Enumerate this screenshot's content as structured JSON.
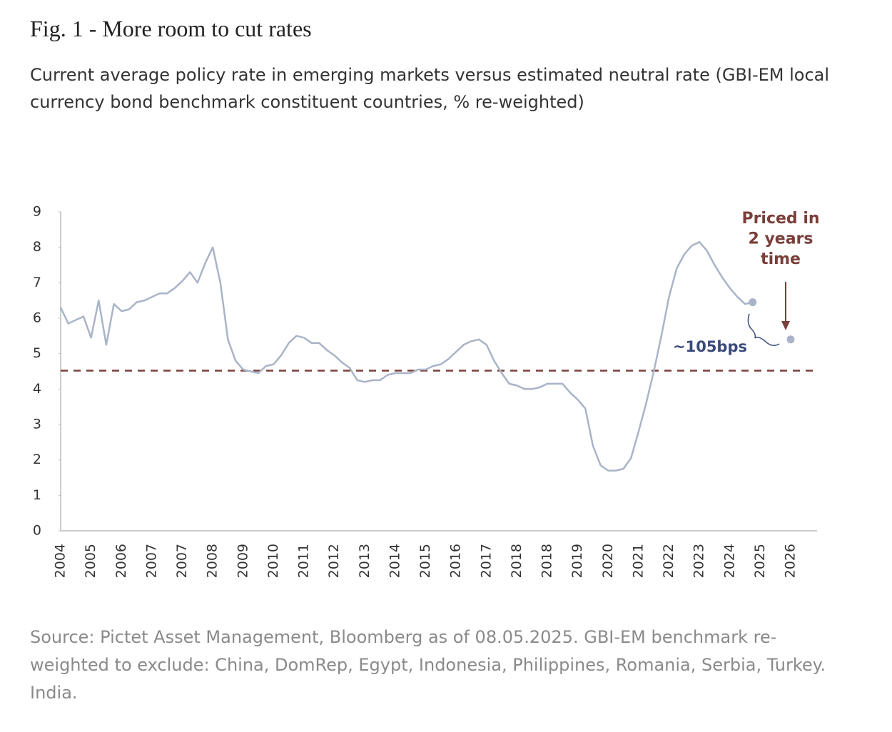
{
  "title": "Fig. 1 - More room to cut rates",
  "subtitle": "Current average policy rate in emerging markets versus estimated neutral rate (GBI-EM local currency bond benchmark constituent countries, % re-weighted)",
  "source": "Source: Pictet Asset Management, Bloomberg as of 08.05.2025. GBI-EM benchmark re-weighted to exclude: China, DomRep, Egypt, Indonesia, Philippines, Romania, Serbia, Turkey. India.",
  "chart_data": {
    "type": "line",
    "categories": [
      "2004",
      null,
      null,
      null,
      "2005",
      null,
      null,
      null,
      "2006",
      null,
      null,
      null,
      "2007",
      null,
      null,
      null,
      "2007",
      null,
      null,
      null,
      "2008",
      null,
      null,
      null,
      "2009",
      null,
      null,
      null,
      "2010",
      null,
      null,
      null,
      "2011",
      null,
      null,
      null,
      "2012",
      null,
      null,
      null,
      "2013",
      null,
      null,
      null,
      "2014",
      null,
      null,
      null,
      "2015",
      null,
      null,
      null,
      "2016",
      null,
      null,
      null,
      "2017",
      null,
      null,
      null,
      "2018",
      null,
      null,
      null,
      "2018",
      null,
      null,
      null,
      "2019",
      null,
      null,
      null,
      "2020",
      null,
      null,
      null,
      "2021",
      null,
      null,
      null,
      "2022",
      null,
      null,
      null,
      "2023",
      null,
      null,
      null,
      "2024",
      null,
      null,
      null,
      "2025",
      null,
      null,
      null,
      "2026"
    ],
    "series": [
      {
        "color": "#a9b4c8",
        "style": "line",
        "values": [
          6.3,
          5.85,
          5.95,
          6.05,
          5.45,
          6.5,
          5.25,
          6.4,
          6.2,
          6.25,
          6.45,
          6.5,
          6.6,
          6.7,
          6.7,
          6.85,
          7.05,
          7.3,
          7.0,
          7.55,
          8.0,
          7.0,
          5.4,
          4.8,
          4.55,
          4.5,
          4.45,
          4.65,
          4.7,
          4.95,
          5.3,
          5.5,
          5.45,
          5.3,
          5.3,
          5.1,
          4.95,
          4.75,
          4.6,
          4.25,
          4.2,
          4.25,
          4.25,
          4.4,
          4.45,
          4.45,
          4.45,
          4.55,
          4.55,
          4.65,
          4.7,
          4.85,
          5.05,
          5.25,
          5.35,
          5.4,
          5.25,
          4.8,
          4.45,
          4.15,
          4.1,
          4.0,
          4.0,
          4.05,
          4.15,
          4.15,
          4.15,
          3.9,
          3.7,
          3.45,
          2.4,
          1.85,
          1.7,
          1.7,
          1.75,
          2.05,
          2.8,
          3.6,
          4.5,
          5.5,
          6.6,
          7.4,
          7.8,
          8.05,
          8.15,
          7.9,
          7.5,
          7.15,
          6.85,
          6.6,
          6.4,
          6.45,
          null,
          null,
          null,
          null,
          null
        ]
      },
      {
        "color": "#a9b4c8",
        "style": "dots",
        "values": [
          null,
          null,
          null,
          null,
          null,
          null,
          null,
          null,
          null,
          null,
          null,
          null,
          null,
          null,
          null,
          null,
          null,
          null,
          null,
          null,
          null,
          null,
          null,
          null,
          null,
          null,
          null,
          null,
          null,
          null,
          null,
          null,
          null,
          null,
          null,
          null,
          null,
          null,
          null,
          null,
          null,
          null,
          null,
          null,
          null,
          null,
          null,
          null,
          null,
          null,
          null,
          null,
          null,
          null,
          null,
          null,
          null,
          null,
          null,
          null,
          null,
          null,
          null,
          null,
          null,
          null,
          null,
          null,
          null,
          null,
          null,
          null,
          null,
          null,
          null,
          null,
          null,
          null,
          null,
          null,
          null,
          null,
          null,
          null,
          null,
          null,
          null,
          null,
          null,
          null,
          null,
          6.45,
          null,
          null,
          null,
          null,
          5.4
        ]
      }
    ],
    "hline": {
      "value": 4.52,
      "color": "#7a3f3a"
    },
    "ylim": [
      0,
      9
    ],
    "yticks": [
      0,
      1,
      2,
      3,
      4,
      5,
      6,
      7,
      8,
      9
    ],
    "annotations": {
      "priced": {
        "lines": [
          "Priced in",
          "2 years",
          "time"
        ],
        "color": "#7a3f3a"
      },
      "gap": {
        "text": "~105bps",
        "color": "#3a4a7a"
      }
    }
  }
}
